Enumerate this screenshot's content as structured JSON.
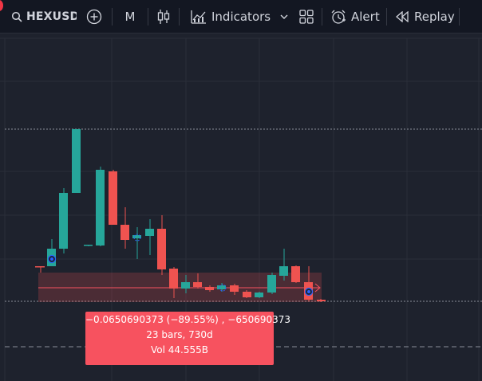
{
  "toolbar": {
    "symbol": "HEXUSD(",
    "interval": "M",
    "indicators_label": "Indicators",
    "alert_label": "Alert",
    "replay_label": "Replay"
  },
  "measure_tooltip": {
    "line1": "−0.0650690373 (−89.55%) , −650690373",
    "line2": "23 bars, 730d",
    "line3": "Vol 44.555B"
  },
  "colors": {
    "background": "#1e222d",
    "toolbar": "#131722",
    "up": "#26a69a",
    "down": "#ef5350",
    "tooltip": "#f7525f"
  },
  "icons": [
    "search-icon",
    "add-symbol-icon",
    "candles-icon",
    "indicators-icon",
    "chevron-down-icon",
    "layouts-icon",
    "alarm-clock-icon",
    "replay-icon"
  ]
}
